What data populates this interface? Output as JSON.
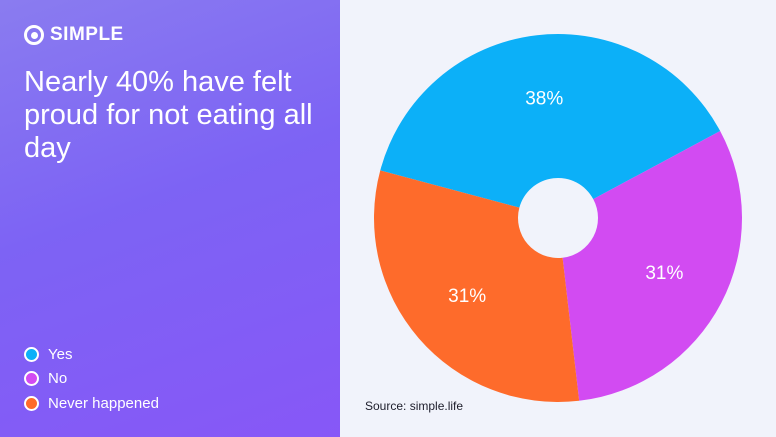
{
  "brand": {
    "name": "SIMPLE",
    "logo_icon": "simple-logo-icon"
  },
  "headline": "Nearly 40% have felt proud for not eating all day",
  "source": "Source: simple.life",
  "colors": {
    "panel_gradient_start": "#8a7cf0",
    "panel_gradient_end": "#8757f7",
    "background": "#f1f3fb"
  },
  "chart_data": {
    "type": "pie",
    "style": "donut",
    "title": "Nearly 40% have felt proud for not eating all day",
    "legend_placement": "bottom-left",
    "slices": [
      {
        "label": "Yes",
        "value": 38,
        "display": "38%",
        "color": "#0cb0f8"
      },
      {
        "label": "No",
        "value": 31,
        "display": "31%",
        "color": "#d24bf2"
      },
      {
        "label": "Never happened",
        "value": 31,
        "display": "31%",
        "color": "#fe6b2b"
      }
    ]
  }
}
